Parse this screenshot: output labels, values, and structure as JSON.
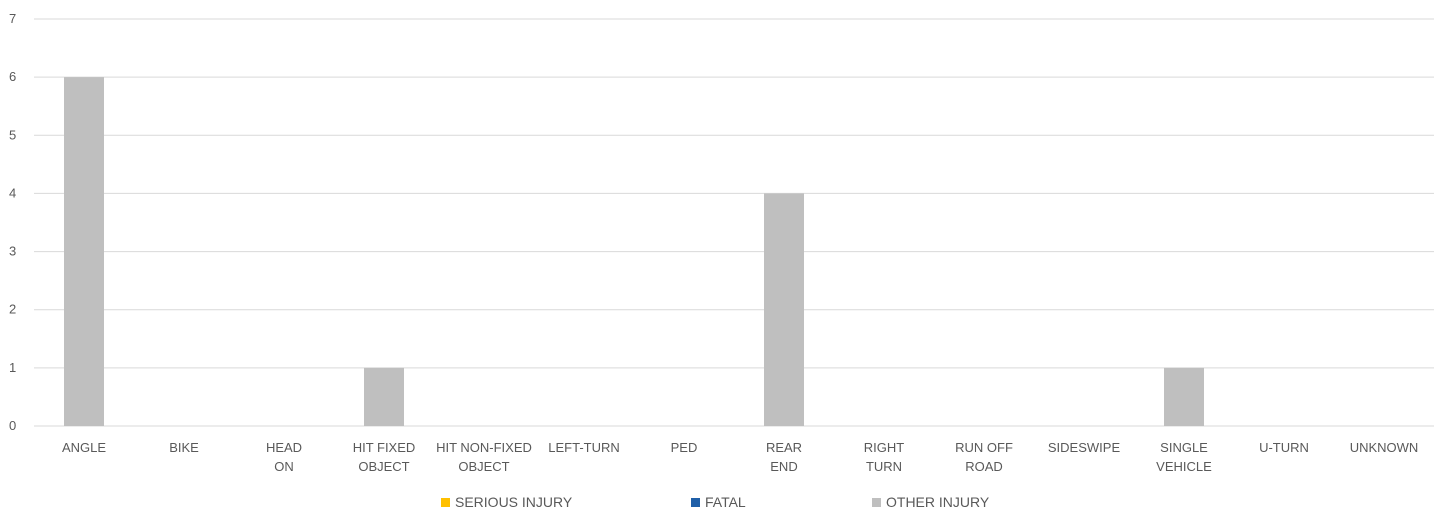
{
  "chart_data": {
    "type": "bar",
    "categories": [
      [
        "ANGLE"
      ],
      [
        "BIKE"
      ],
      [
        "HEAD",
        "ON"
      ],
      [
        "HIT FIXED",
        "OBJECT"
      ],
      [
        "HIT NON-FIXED",
        "OBJECT"
      ],
      [
        "LEFT-TURN"
      ],
      [
        "PED"
      ],
      [
        "REAR",
        "END"
      ],
      [
        "RIGHT",
        "TURN"
      ],
      [
        "RUN OFF",
        "ROAD"
      ],
      [
        "SIDESWIPE"
      ],
      [
        "SINGLE",
        "VEHICLE"
      ],
      [
        "U-TURN"
      ],
      [
        "UNKNOWN"
      ]
    ],
    "series": [
      {
        "name": "SERIOUS INJURY",
        "color": "#FFC000",
        "values": [
          0,
          0,
          0,
          0,
          0,
          0,
          0,
          0,
          0,
          0,
          0,
          0,
          0,
          0
        ]
      },
      {
        "name": "FATAL",
        "color": "#1F5FA8",
        "values": [
          0,
          0,
          0,
          0,
          0,
          0,
          0,
          0,
          0,
          0,
          0,
          0,
          0,
          0
        ]
      },
      {
        "name": "OTHER INJURY",
        "color": "#BFBFBF",
        "values": [
          6,
          0,
          0,
          1,
          0,
          0,
          0,
          4,
          0,
          0,
          0,
          1,
          0,
          0
        ]
      }
    ],
    "ylim": [
      0,
      7
    ],
    "yticks": [
      "0",
      "1",
      "2",
      "3",
      "4",
      "5",
      "6",
      "7"
    ],
    "grid": true,
    "legend_position": "bottom-center",
    "gridline_color": "#D9D9D9",
    "axis_color": "#D9D9D9"
  }
}
